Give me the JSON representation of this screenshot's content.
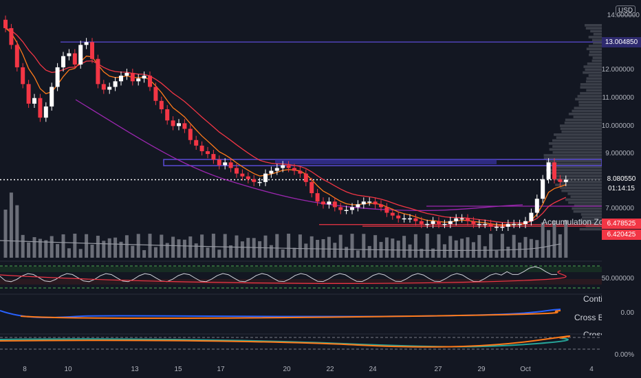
{
  "currency_badge": "USD",
  "price_axis": {
    "top_partial": "14.000000",
    "ticks": [
      {
        "label": "12.000000",
        "value": 12
      },
      {
        "label": "11.000000",
        "value": 11
      },
      {
        "label": "10.000000",
        "value": 10
      },
      {
        "label": "9.000000",
        "value": 9
      },
      {
        "label": "7.000000",
        "value": 7
      }
    ],
    "tags": {
      "high_level": {
        "label": "13.004850",
        "value": 13.00485,
        "color": "#2e2a6e"
      },
      "last_price": {
        "label": "8.080550",
        "value": 8.08055,
        "color": "#131722"
      },
      "countdown": "01:14:15",
      "zone_top": {
        "label": "6.478525",
        "value": 6.478525,
        "color": "#f23645"
      },
      "zone_bottom": {
        "label": "6.420425",
        "value": 6.420425,
        "color": "#f23645"
      }
    },
    "rsi_level": "50.000000",
    "macd_level": "0.00",
    "pct_level": "0.00%"
  },
  "time_axis": [
    "8",
    "10",
    "13",
    "15",
    "17",
    "20",
    "22",
    "24",
    "27",
    "29",
    "Oct",
    "4"
  ],
  "annotations": {
    "accumulation_zone": "Accumulation Zone",
    "pane_label_1": "Conti",
    "pane_label_2": "Cross Be",
    "pane_label_3": "Cross"
  },
  "colors": {
    "background": "#131722",
    "up_candle": "#ffffff",
    "down_candle": "#f23645",
    "ema_fast": "#ff7a1a",
    "ema_slow": "#f23645",
    "trendline": "#9c27b0",
    "range_box": "#5b4bd6",
    "volume": "#6b6e78"
  },
  "chart_data": {
    "type": "candlestick",
    "price_range": [
      6.0,
      14.2
    ],
    "closes": [
      13.5,
      12.9,
      12.1,
      11.5,
      10.8,
      11.0,
      10.3,
      10.7,
      11.4,
      12.1,
      12.5,
      12.6,
      12.2,
      12.9,
      13.0,
      12.4,
      11.5,
      11.3,
      11.4,
      11.6,
      11.8,
      11.9,
      11.6,
      11.7,
      11.8,
      11.4,
      10.9,
      10.6,
      10.2,
      10.0,
      10.1,
      9.9,
      9.5,
      9.3,
      9.1,
      9.0,
      8.8,
      8.6,
      8.7,
      8.5,
      8.3,
      8.2,
      8.1,
      8.0,
      8.0,
      8.3,
      8.4,
      8.5,
      8.6,
      8.5,
      8.4,
      8.3,
      8.0,
      7.6,
      7.3,
      7.2,
      7.3,
      7.1,
      7.0,
      7.0,
      7.1,
      7.2,
      7.3,
      7.3,
      7.2,
      7.1,
      6.9,
      6.8,
      6.7,
      6.7,
      6.7,
      6.6,
      6.5,
      6.5,
      6.6,
      6.5,
      6.5,
      6.6,
      6.7,
      6.7,
      6.6,
      6.5,
      6.5,
      6.5,
      6.4,
      6.4,
      6.4,
      6.5,
      6.5,
      6.5,
      6.6,
      6.9,
      7.4,
      8.1,
      8.7,
      8.1,
      8.0,
      8.08
    ]
  }
}
